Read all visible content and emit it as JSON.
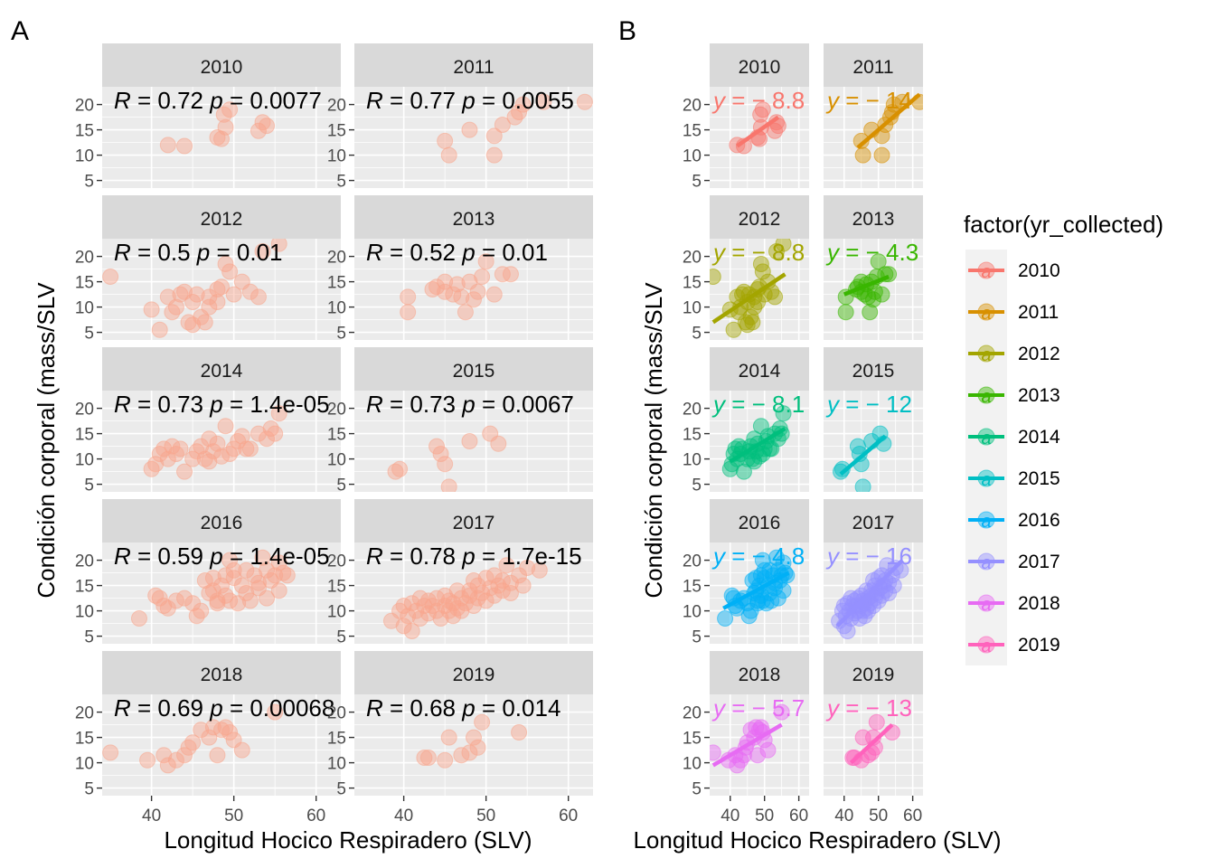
{
  "panel_tags": [
    "A",
    "B"
  ],
  "chart_data": [
    {
      "type": "scatter",
      "tag": "A",
      "facet_by": "year",
      "xlabel": "Longitud Hocico Respiradero (SLV)",
      "ylabel": "Condición corporal (mass/SLV",
      "x_ticks": [
        40,
        50,
        60
      ],
      "y_ticks": [
        5,
        10,
        15,
        20
      ],
      "xlim": [
        34,
        63
      ],
      "ylim": [
        3.5,
        23.5
      ],
      "point_color": "#F8A58C",
      "facets": [
        {
          "label": "2010",
          "r": "0.72",
          "p": "0.0077",
          "points": [
            [
              42,
              12
            ],
            [
              44,
              11.8
            ],
            [
              48,
              13.5
            ],
            [
              48.5,
              13.2
            ],
            [
              48.8,
              18
            ],
            [
              49,
              15.5
            ],
            [
              49.5,
              19
            ],
            [
              53,
              14.8
            ],
            [
              53.5,
              16.5
            ],
            [
              54,
              15.8
            ]
          ]
        },
        {
          "label": "2011",
          "r": "0.77",
          "p": "0.0055",
          "points": [
            [
              45,
              12.8
            ],
            [
              45.5,
              10
            ],
            [
              48,
              15
            ],
            [
              51,
              10
            ],
            [
              51,
              13.8
            ],
            [
              52,
              16
            ],
            [
              53.5,
              17.5
            ],
            [
              54,
              18.5
            ],
            [
              54.5,
              20
            ],
            [
              57,
              20.5
            ],
            [
              62,
              20.5
            ]
          ]
        },
        {
          "label": "2012",
          "r": "0.5",
          "p": "0.01",
          "points": [
            [
              35,
              16
            ],
            [
              40,
              9.5
            ],
            [
              41,
              5.5
            ],
            [
              42,
              12
            ],
            [
              42.5,
              9
            ],
            [
              43,
              10
            ],
            [
              43.5,
              12.5
            ],
            [
              44,
              13
            ],
            [
              44.5,
              7
            ],
            [
              45,
              6.5
            ],
            [
              45,
              11
            ],
            [
              45.5,
              12.5
            ],
            [
              46,
              8
            ],
            [
              46.5,
              7
            ],
            [
              47,
              12
            ],
            [
              47,
              10
            ],
            [
              48,
              11
            ],
            [
              48,
              13.5
            ],
            [
              48.5,
              14
            ],
            [
              49,
              18.5
            ],
            [
              49.5,
              17
            ],
            [
              50,
              12.5
            ],
            [
              51,
              15
            ],
            [
              52,
              13
            ],
            [
              53,
              12
            ],
            [
              53.5,
              21
            ],
            [
              55.5,
              22.5
            ]
          ]
        },
        {
          "label": "2013",
          "r": "0.52",
          "p": "0.01",
          "points": [
            [
              40.5,
              12
            ],
            [
              40.5,
              9
            ],
            [
              43.5,
              13.5
            ],
            [
              44,
              14
            ],
            [
              45,
              15
            ],
            [
              45,
              13
            ],
            [
              46,
              12.5
            ],
            [
              46.5,
              14.5
            ],
            [
              47,
              12
            ],
            [
              47.5,
              9
            ],
            [
              48,
              15
            ],
            [
              48.5,
              11.5
            ],
            [
              49,
              13
            ],
            [
              49.5,
              16
            ],
            [
              50,
              19
            ],
            [
              51,
              12.5
            ],
            [
              52,
              16.5
            ],
            [
              53,
              16.5
            ]
          ]
        },
        {
          "label": "2014",
          "r": "0.73",
          "p": "1.4e-05",
          "points": [
            [
              40,
              8
            ],
            [
              40.5,
              9
            ],
            [
              41,
              11
            ],
            [
              41.5,
              12
            ],
            [
              42,
              10
            ],
            [
              42.5,
              12.5
            ],
            [
              43,
              11
            ],
            [
              43.5,
              12
            ],
            [
              44,
              7.5
            ],
            [
              45,
              10
            ],
            [
              45.5,
              11.5
            ],
            [
              46,
              12.5
            ],
            [
              46.5,
              10
            ],
            [
              47,
              9.5
            ],
            [
              47,
              14
            ],
            [
              47.5,
              11.5
            ],
            [
              48,
              13
            ],
            [
              48.5,
              10.5
            ],
            [
              49,
              16.5
            ],
            [
              49.5,
              11
            ],
            [
              50,
              12
            ],
            [
              50.5,
              13.5
            ],
            [
              51,
              14.5
            ],
            [
              51.5,
              12
            ],
            [
              52,
              12
            ],
            [
              53,
              15
            ],
            [
              54,
              14
            ],
            [
              54.5,
              16
            ],
            [
              55,
              15
            ],
            [
              55.5,
              19
            ]
          ]
        },
        {
          "label": "2015",
          "r": "0.73",
          "p": "0.0067",
          "points": [
            [
              39,
              7.5
            ],
            [
              39.5,
              8
            ],
            [
              44,
              12.5
            ],
            [
              44.5,
              11
            ],
            [
              45,
              9
            ],
            [
              45.5,
              4.5
            ],
            [
              48,
              13.5
            ],
            [
              50.5,
              15
            ],
            [
              51.5,
              13
            ]
          ]
        },
        {
          "label": "2016",
          "r": "0.59",
          "p": "1.4e-05",
          "points": [
            [
              38.5,
              8.5
            ],
            [
              40.5,
              13
            ],
            [
              41,
              12.5
            ],
            [
              41.5,
              11
            ],
            [
              42,
              10.5
            ],
            [
              43,
              12
            ],
            [
              44,
              12.5
            ],
            [
              45,
              11.5
            ],
            [
              45.5,
              9
            ],
            [
              46,
              10
            ],
            [
              46.5,
              16
            ],
            [
              47,
              13.5
            ],
            [
              47.5,
              14
            ],
            [
              47.5,
              16.5
            ],
            [
              48,
              12
            ],
            [
              48,
              11.5
            ],
            [
              48.5,
              15
            ],
            [
              49,
              13
            ],
            [
              49,
              17
            ],
            [
              49.5,
              20
            ],
            [
              49.5,
              12
            ],
            [
              50,
              16.5
            ],
            [
              50,
              18
            ],
            [
              50.5,
              11.5
            ],
            [
              51,
              15
            ],
            [
              51.5,
              13.5
            ],
            [
              51.5,
              18
            ],
            [
              52,
              12
            ],
            [
              52.5,
              17
            ],
            [
              53,
              15.5
            ],
            [
              53,
              14.5
            ],
            [
              53.5,
              20.5
            ],
            [
              54,
              12.5
            ],
            [
              54,
              18
            ],
            [
              54.5,
              16
            ],
            [
              55,
              17
            ],
            [
              55.5,
              14
            ],
            [
              55.5,
              19.5
            ],
            [
              56,
              17.5
            ],
            [
              56.5,
              17
            ]
          ]
        },
        {
          "label": "2017",
          "r": "0.78",
          "p": "1.7e-15",
          "points": [
            [
              38.5,
              8
            ],
            [
              39.5,
              10
            ],
            [
              40,
              7
            ],
            [
              40,
              11
            ],
            [
              40.5,
              9
            ],
            [
              41,
              6
            ],
            [
              41,
              11.5
            ],
            [
              41.5,
              10
            ],
            [
              42,
              12.5
            ],
            [
              42,
              8.5
            ],
            [
              42.5,
              11
            ],
            [
              43,
              9.5
            ],
            [
              43,
              12
            ],
            [
              43.5,
              11
            ],
            [
              44,
              10
            ],
            [
              44,
              12.5
            ],
            [
              44.5,
              8.5
            ],
            [
              45,
              11
            ],
            [
              45,
              13
            ],
            [
              45.5,
              10
            ],
            [
              45.5,
              12
            ],
            [
              46,
              9
            ],
            [
              46,
              11.5
            ],
            [
              46.5,
              14
            ],
            [
              46.5,
              10.5
            ],
            [
              47,
              12.5
            ],
            [
              47,
              10
            ],
            [
              47.5,
              11.5
            ],
            [
              48,
              14
            ],
            [
              48,
              13
            ],
            [
              48.5,
              11
            ],
            [
              48.5,
              16
            ],
            [
              49,
              12.5
            ],
            [
              49,
              15
            ],
            [
              49.5,
              13.5
            ],
            [
              50,
              12
            ],
            [
              50,
              16.5
            ],
            [
              50.5,
              14.5
            ],
            [
              51,
              13
            ],
            [
              51,
              17
            ],
            [
              51.5,
              15
            ],
            [
              52,
              14
            ],
            [
              52,
              16
            ],
            [
              52.5,
              19
            ],
            [
              53,
              15.5
            ],
            [
              53,
              13.5
            ],
            [
              54,
              17
            ],
            [
              54.5,
              15
            ],
            [
              55,
              18.5
            ],
            [
              56.5,
              18
            ]
          ]
        },
        {
          "label": "2018",
          "r": "0.69",
          "p": "0.00068",
          "points": [
            [
              35,
              12
            ],
            [
              39.5,
              10.5
            ],
            [
              41.5,
              11.5
            ],
            [
              42,
              9.5
            ],
            [
              43,
              10.5
            ],
            [
              44,
              11.5
            ],
            [
              44.5,
              13
            ],
            [
              45,
              14
            ],
            [
              46,
              16.5
            ],
            [
              47,
              15
            ],
            [
              47.5,
              17
            ],
            [
              48,
              11.5
            ],
            [
              48.5,
              16.5
            ],
            [
              49,
              17
            ],
            [
              49.5,
              16
            ],
            [
              50,
              14.5
            ],
            [
              51,
              12.5
            ],
            [
              55,
              20
            ]
          ]
        },
        {
          "label": "2019",
          "r": "0.68",
          "p": "0.014",
          "points": [
            [
              42.5,
              11
            ],
            [
              43,
              11
            ],
            [
              45,
              10.5
            ],
            [
              45.5,
              15
            ],
            [
              47,
              11.5
            ],
            [
              48,
              12
            ],
            [
              48.5,
              15
            ],
            [
              49,
              13
            ],
            [
              49.5,
              18
            ],
            [
              54,
              16
            ]
          ]
        }
      ]
    },
    {
      "type": "scatter",
      "tag": "B",
      "facet_by": "year",
      "xlabel": "Longitud Hocico Respiradero (SLV)",
      "ylabel": "Condición corporal (mass/SLV",
      "x_ticks": [
        40,
        50,
        60
      ],
      "y_ticks": [
        5,
        10,
        15,
        20
      ],
      "xlim": [
        34,
        63
      ],
      "ylim": [
        3.5,
        23.5
      ],
      "legend_title": "factor(yr_collected)",
      "legend_position": "right",
      "legend_key_glyph": "a",
      "facets": [
        {
          "label": "2010",
          "color": "#F8766D",
          "eq": "y = − 8.8",
          "fit": [
            [
              42,
              11.8
            ],
            [
              54,
              17.5
            ]
          ]
        },
        {
          "label": "2011",
          "color": "#D89000",
          "eq": "y = − 14",
          "fit": [
            [
              44,
              11.5
            ],
            [
              62,
              22
            ]
          ]
        },
        {
          "label": "2012",
          "color": "#A3A500",
          "eq": "y = − 8.8",
          "fit": [
            [
              35,
              7
            ],
            [
              56,
              16.5
            ]
          ]
        },
        {
          "label": "2013",
          "color": "#39B600",
          "eq": "y = − 4.3",
          "fit": [
            [
              40,
              12.5
            ],
            [
              53,
              16
            ]
          ]
        },
        {
          "label": "2014",
          "color": "#00BF7D",
          "eq": "y = − 8.1",
          "fit": [
            [
              40,
              9.5
            ],
            [
              56,
              16
            ]
          ]
        },
        {
          "label": "2015",
          "color": "#00BFC4",
          "eq": "y = − 12",
          "fit": [
            [
              39,
              7
            ],
            [
              52,
              14.5
            ]
          ]
        },
        {
          "label": "2016",
          "color": "#00B0F6",
          "eq": "y = − 4.8",
          "fit": [
            [
              38,
              10.5
            ],
            [
              57,
              17.5
            ]
          ]
        },
        {
          "label": "2017",
          "color": "#9590FF",
          "eq": "y = − 16",
          "fit": [
            [
              38,
              7
            ],
            [
              57,
              20
            ]
          ]
        },
        {
          "label": "2018",
          "color": "#E76BF3",
          "eq": "y = − 5.7",
          "fit": [
            [
              35,
              9.5
            ],
            [
              55,
              17.5
            ]
          ]
        },
        {
          "label": "2019",
          "color": "#FF62BC",
          "eq": "y = − 13",
          "fit": [
            [
              42,
              10
            ],
            [
              54,
              17.5
            ]
          ]
        }
      ]
    }
  ]
}
